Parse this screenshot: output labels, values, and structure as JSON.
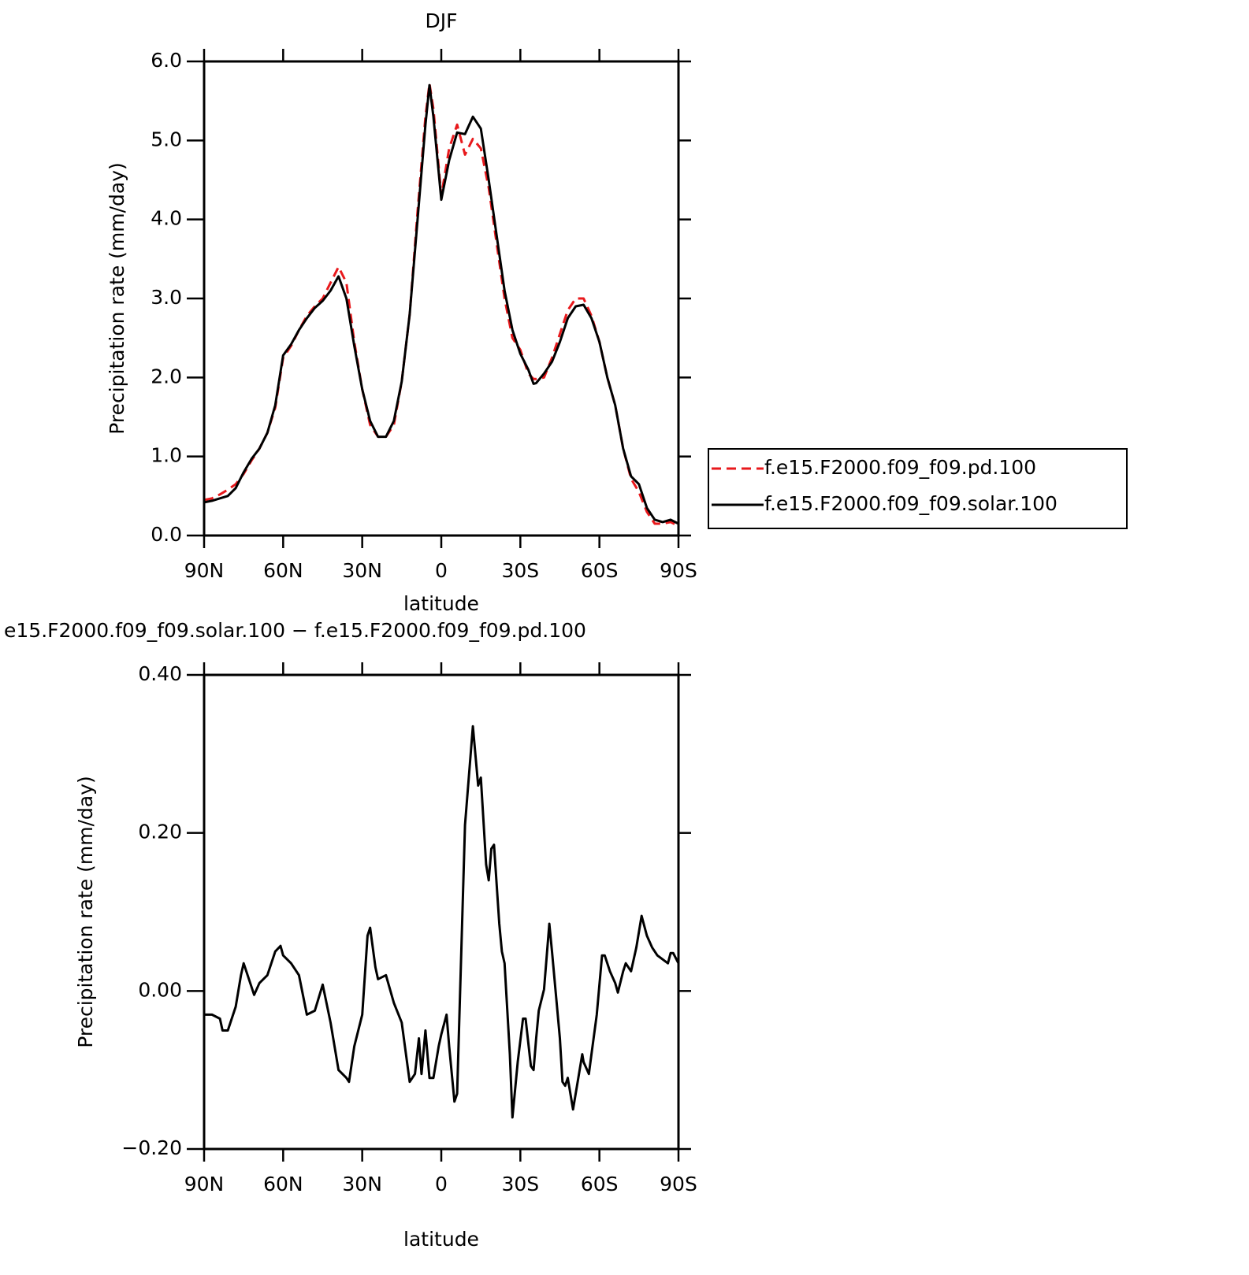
{
  "chart_data": [
    {
      "type": "line",
      "title": "DJF",
      "xlabel": "latitude",
      "ylabel": "Precipitation rate (mm/day)",
      "xlim": [
        90,
        -90
      ],
      "ylim": [
        0,
        6
      ],
      "xticks": [
        {
          "value": 90,
          "label": "90N"
        },
        {
          "value": 60,
          "label": "60N"
        },
        {
          "value": 30,
          "label": "30N"
        },
        0,
        {
          "value": -30,
          "label": "30S"
        },
        {
          "value": -60,
          "label": "60S"
        },
        {
          "value": -90,
          "label": "90S"
        }
      ],
      "yticks": [
        {
          "value": 0,
          "label": "0.0"
        },
        {
          "value": 1,
          "label": "1.0"
        },
        {
          "value": 2,
          "label": "2.0"
        },
        {
          "value": 3,
          "label": "3.0"
        },
        {
          "value": 4,
          "label": "4.0"
        },
        {
          "value": 5,
          "label": "5.0"
        },
        {
          "value": 6,
          "label": "6.0"
        }
      ],
      "legend": "right",
      "x": [
        90,
        87,
        84,
        81,
        78,
        75,
        72,
        69,
        66,
        63,
        60,
        57,
        54,
        51,
        48,
        45,
        42,
        39,
        36,
        33,
        30,
        27,
        24,
        21,
        18,
        15,
        12,
        9,
        6,
        4.5,
        3,
        0,
        -3,
        -6,
        -9,
        -12,
        -15,
        -18,
        -21,
        -24,
        -27,
        -30,
        -33,
        -35,
        -36,
        -39,
        -42,
        -45,
        -48,
        -51,
        -54,
        -57,
        -60,
        -63,
        -66,
        -69,
        -72,
        -75,
        -78,
        -81,
        -84,
        -87,
        -90
      ],
      "series": [
        {
          "name": "f.e15.F2000.f09_f09.pd.100",
          "color": "#e8191c",
          "style": "dashed",
          "values": [
            0.45,
            0.47,
            0.52,
            0.58,
            0.65,
            0.78,
            0.95,
            1.1,
            1.3,
            1.62,
            2.25,
            2.4,
            2.6,
            2.78,
            2.9,
            3.0,
            3.2,
            3.4,
            3.2,
            2.45,
            1.85,
            1.4,
            1.25,
            1.25,
            1.4,
            1.95,
            2.8,
            4.1,
            5.3,
            5.72,
            5.4,
            4.3,
            4.9,
            5.2,
            4.82,
            5.02,
            4.9,
            4.4,
            3.7,
            3.0,
            2.5,
            2.35,
            2.05,
            1.98,
            1.98,
            2.0,
            2.25,
            2.55,
            2.85,
            3.0,
            3.0,
            2.78,
            2.45,
            2.0,
            1.65,
            1.1,
            0.72,
            0.55,
            0.3,
            0.15,
            0.15,
            0.17,
            0.12
          ]
        },
        {
          "name": "f.e15.F2000.f09_f09.solar.100",
          "color": "#000000",
          "style": "solid",
          "values": [
            0.42,
            0.44,
            0.47,
            0.5,
            0.6,
            0.8,
            0.97,
            1.1,
            1.3,
            1.65,
            2.28,
            2.42,
            2.6,
            2.75,
            2.88,
            2.97,
            3.1,
            3.28,
            3.0,
            2.4,
            1.85,
            1.45,
            1.25,
            1.25,
            1.45,
            1.95,
            2.8,
            4.0,
            5.2,
            5.7,
            5.3,
            4.25,
            4.75,
            5.1,
            5.08,
            5.3,
            5.15,
            4.5,
            3.8,
            3.1,
            2.6,
            2.3,
            2.1,
            1.92,
            1.93,
            2.05,
            2.2,
            2.45,
            2.75,
            2.9,
            2.92,
            2.75,
            2.45,
            2.0,
            1.65,
            1.1,
            0.75,
            0.65,
            0.35,
            0.2,
            0.17,
            0.2,
            0.15
          ]
        }
      ]
    },
    {
      "type": "line",
      "title": "e15.F2000.f09_f09.solar.100 − f.e15.F2000.f09_f09.pd.100",
      "xlabel": "latitude",
      "ylabel": "Precipitation rate (mm/day)",
      "xlim": [
        90,
        -90
      ],
      "ylim": [
        -0.2,
        0.4
      ],
      "xticks": [
        {
          "value": 90,
          "label": "90N"
        },
        {
          "value": 60,
          "label": "60N"
        },
        {
          "value": 30,
          "label": "30N"
        },
        0,
        {
          "value": -30,
          "label": "30S"
        },
        {
          "value": -60,
          "label": "60S"
        },
        {
          "value": -90,
          "label": "90S"
        }
      ],
      "yticks": [
        {
          "value": -0.2,
          "label": "−0.20"
        },
        {
          "value": 0,
          "label": "0.00"
        },
        {
          "value": 0.2,
          "label": "0.20"
        },
        {
          "value": 0.4,
          "label": "0.40"
        }
      ],
      "x": [
        90,
        87,
        84,
        83,
        81,
        78,
        76,
        75,
        72,
        71,
        69,
        66,
        63,
        61,
        60,
        57,
        54,
        51,
        48,
        45,
        42,
        39,
        36,
        35,
        33,
        30,
        28,
        27,
        25,
        24,
        21,
        18,
        15,
        12,
        10,
        8.5,
        7.5,
        6,
        4.5,
        3,
        1,
        0,
        -2,
        -3,
        -5,
        -6,
        -9,
        -12,
        -14,
        -15,
        -17,
        -18,
        -19,
        -20,
        -22,
        -23,
        -24,
        -26,
        -27,
        -29,
        -31,
        -32,
        -34,
        -35,
        -36,
        -37,
        -39,
        -41,
        -42,
        -45,
        -46,
        -47,
        -48,
        -50,
        -52,
        -53.5,
        -54,
        -56,
        -57,
        -59,
        -61,
        -62,
        -64,
        -66,
        -67,
        -69,
        -70,
        -72,
        -74,
        -76,
        -78,
        -80,
        -82,
        -84,
        -86,
        -87,
        -88,
        -90
      ],
      "series": [
        {
          "color": "#000000",
          "style": "solid",
          "values": [
            -0.03,
            -0.03,
            -0.035,
            -0.05,
            -0.05,
            -0.02,
            0.02,
            0.035,
            0.005,
            -0.005,
            0.01,
            0.02,
            0.05,
            0.057,
            0.045,
            0.035,
            0.02,
            -0.03,
            -0.025,
            0.008,
            -0.04,
            -0.1,
            -0.11,
            -0.115,
            -0.07,
            -0.03,
            0.07,
            0.08,
            0.03,
            0.015,
            0.02,
            -0.015,
            -0.04,
            -0.115,
            -0.105,
            -0.06,
            -0.105,
            -0.05,
            -0.11,
            -0.11,
            -0.07,
            -0.055,
            -0.03,
            -0.07,
            -0.14,
            -0.13,
            0.21,
            0.335,
            0.26,
            0.27,
            0.16,
            0.14,
            0.18,
            0.185,
            0.085,
            0.05,
            0.035,
            -0.08,
            -0.16,
            -0.09,
            -0.035,
            -0.035,
            -0.095,
            -0.1,
            -0.06,
            -0.025,
            0.002,
            0.085,
            0.05,
            -0.06,
            -0.115,
            -0.12,
            -0.11,
            -0.15,
            -0.11,
            -0.08,
            -0.09,
            -0.105,
            -0.08,
            -0.03,
            0.045,
            0.045,
            0.025,
            0.01,
            -0.002,
            0.025,
            0.035,
            0.025,
            0.055,
            0.095,
            0.07,
            0.055,
            0.045,
            0.04,
            0.035,
            0.048,
            0.048,
            0.035
          ]
        }
      ]
    }
  ]
}
